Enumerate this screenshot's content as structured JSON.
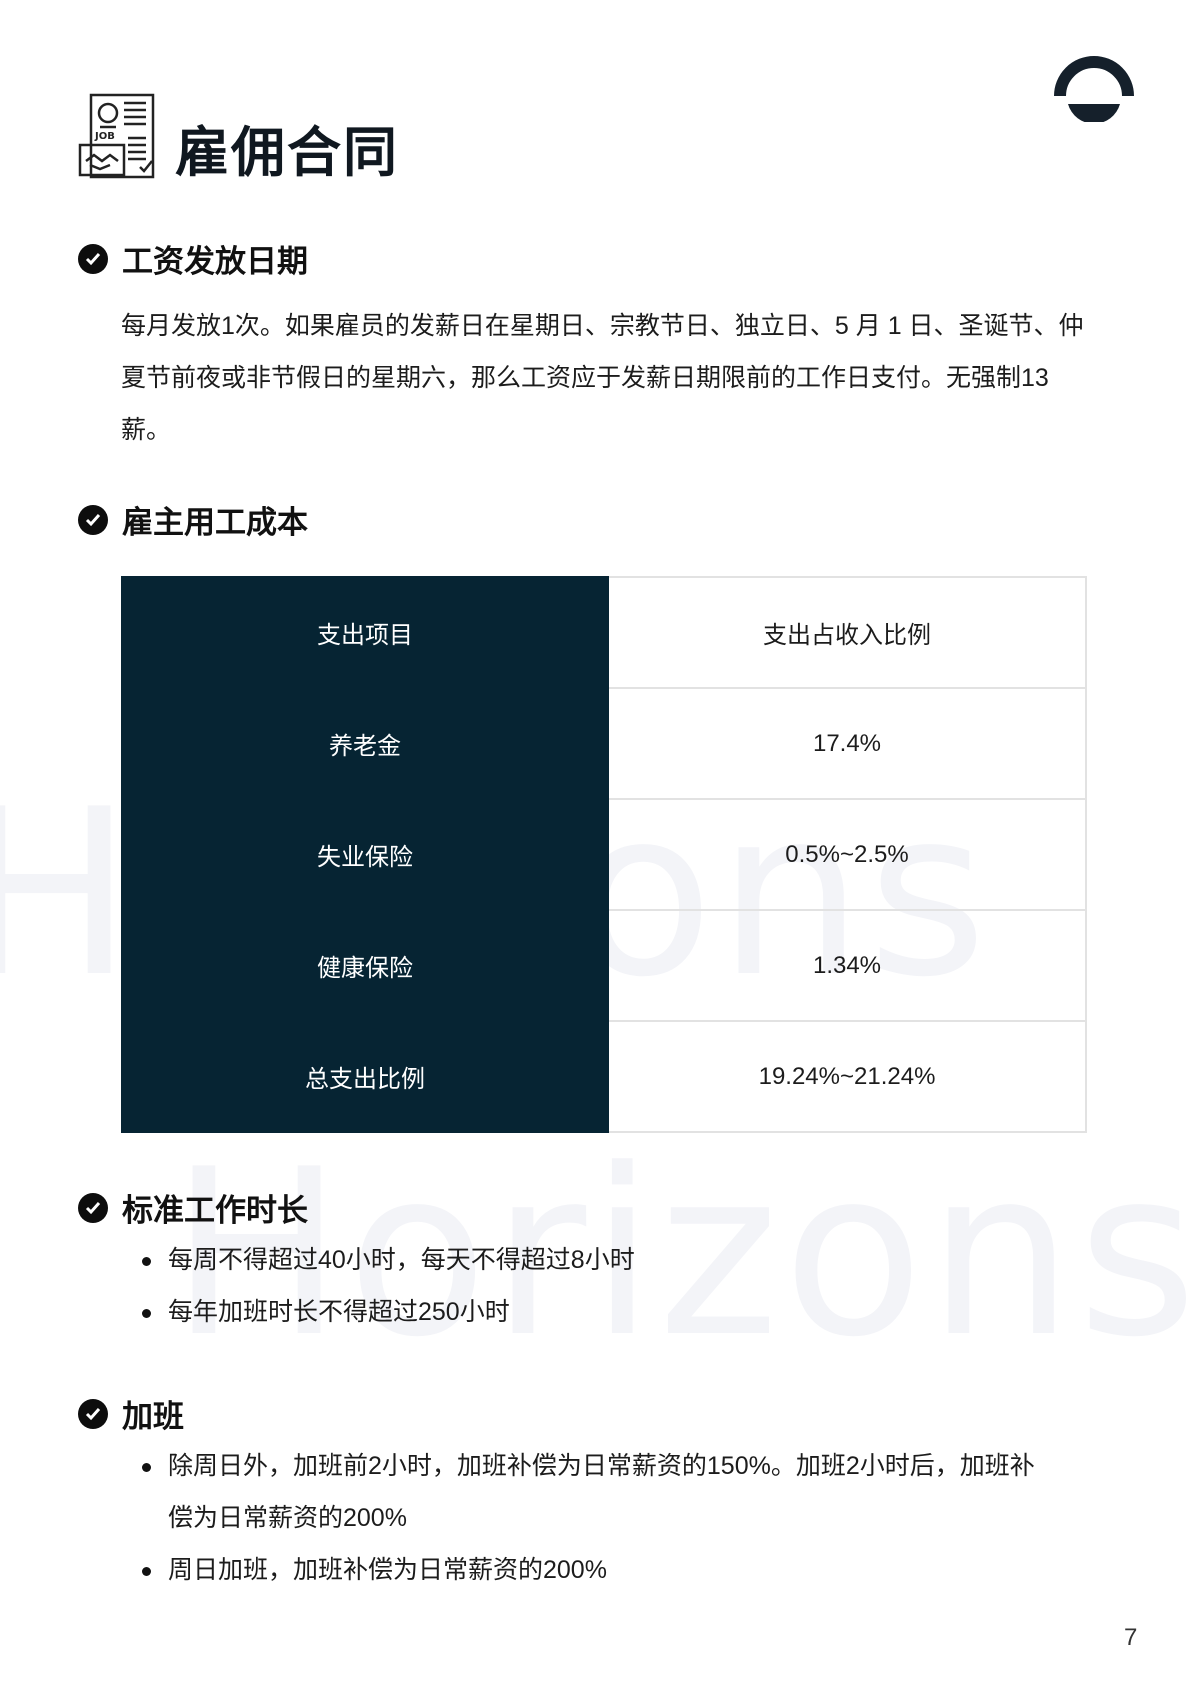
{
  "watermark": "Horizons",
  "header": {
    "title": "雇佣合同",
    "icon": "job-contract-icon",
    "logo": "horizons-logo-icon"
  },
  "sections": [
    {
      "heading": "工资发放日期",
      "paragraph": "每月发放1次。如果雇员的发薪日在星期日、宗教节日、独立日、5 月 1 日、圣诞节、仲夏节前夜或非节假日的星期六，那么工资应于发薪日期限前的工作日支付。无强制13薪。"
    },
    {
      "heading": "雇主用工成本",
      "table": {
        "headers": [
          "支出项目",
          "支出占收入比例"
        ],
        "rows": [
          [
            "养老金",
            "17.4%"
          ],
          [
            "失业保险",
            "0.5%~2.5%"
          ],
          [
            "健康保险",
            "1.34%"
          ],
          [
            "总支出比例",
            "19.24%~21.24%"
          ]
        ]
      }
    },
    {
      "heading": "标准工作时长",
      "bullets": [
        "每周不得超过40小时，每天不得超过8小时",
        "每年加班时长不得超过250小时"
      ]
    },
    {
      "heading": "加班",
      "bullets": [
        "除周日外，加班前2小时，加班补偿为日常薪资的150%。加班2小时后，加班补偿为日常薪资的200%",
        "周日加班，加班补偿为日常薪资的200%"
      ]
    }
  ],
  "page_number": "7",
  "colors": {
    "table_dark": "#062433",
    "text": "#1c1c1c"
  }
}
